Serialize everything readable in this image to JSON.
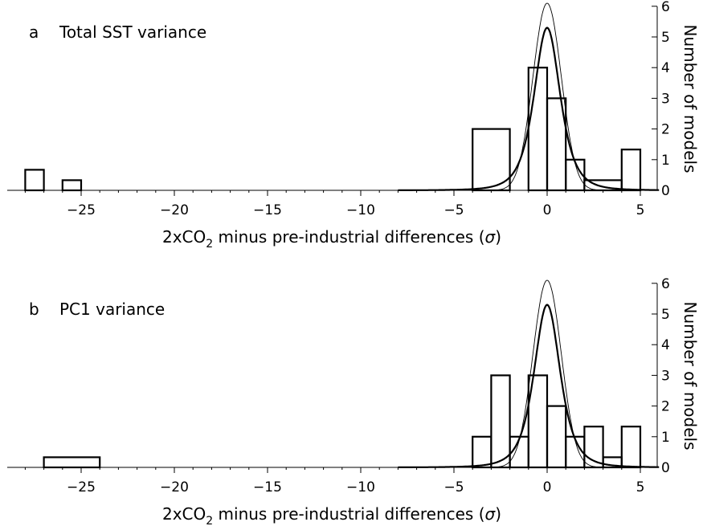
{
  "chart_data": [
    {
      "type": "histogram",
      "panel_label": "a",
      "title": "Total SST variance",
      "xlabel": "2xCO2 minus pre-industrial differences (σ)",
      "ylabel": "Number of models",
      "xlim": [
        -28.5,
        6
      ],
      "ylim": [
        0,
        6
      ],
      "xticks": [
        -25,
        -20,
        -15,
        -10,
        -5,
        0,
        5
      ],
      "yticks": [
        0,
        1,
        2,
        3,
        4,
        5,
        6
      ],
      "bins": [
        {
          "x0": -28,
          "x1": -27,
          "count": 0.67
        },
        {
          "x0": -26,
          "x1": -25,
          "count": 0.33
        },
        {
          "x0": -4,
          "x1": -2,
          "count": 2
        },
        {
          "x0": -1,
          "x1": 0,
          "count": 4
        },
        {
          "x0": 0,
          "x1": 1,
          "count": 3
        },
        {
          "x0": 1,
          "x1": 2,
          "count": 1
        },
        {
          "x0": 2,
          "x1": 4,
          "count": 0.33
        },
        {
          "x0": 4,
          "x1": 5,
          "count": 1.33
        }
      ],
      "series": [
        {
          "style": "thick",
          "kind": "fitted-curve",
          "peak": 5.3
        },
        {
          "style": "thin",
          "kind": "gaussian",
          "peak": 6.1
        }
      ]
    },
    {
      "type": "histogram",
      "panel_label": "b",
      "title": "PC1 variance",
      "xlabel": "2xCO2 minus pre-industrial differences (σ)",
      "ylabel": "Number of models",
      "xlim": [
        -28.5,
        6
      ],
      "ylim": [
        0,
        6
      ],
      "xticks": [
        -25,
        -20,
        -15,
        -10,
        -5,
        0,
        5
      ],
      "yticks": [
        0,
        1,
        2,
        3,
        4,
        5,
        6
      ],
      "bins": [
        {
          "x0": -27,
          "x1": -24,
          "count": 0.33
        },
        {
          "x0": -4,
          "x1": -3,
          "count": 1
        },
        {
          "x0": -3,
          "x1": -2,
          "count": 3
        },
        {
          "x0": -2,
          "x1": -1,
          "count": 1
        },
        {
          "x0": -1,
          "x1": 0,
          "count": 3
        },
        {
          "x0": 0,
          "x1": 1,
          "count": 2
        },
        {
          "x0": 1,
          "x1": 2,
          "count": 1
        },
        {
          "x0": 2,
          "x1": 3,
          "count": 1.33
        },
        {
          "x0": 3,
          "x1": 4,
          "count": 0.33
        },
        {
          "x0": 4,
          "x1": 5,
          "count": 1.33
        }
      ],
      "series": [
        {
          "style": "thick",
          "kind": "fitted-curve",
          "peak": 5.3
        },
        {
          "style": "thin",
          "kind": "gaussian",
          "peak": 6.1
        }
      ]
    }
  ]
}
